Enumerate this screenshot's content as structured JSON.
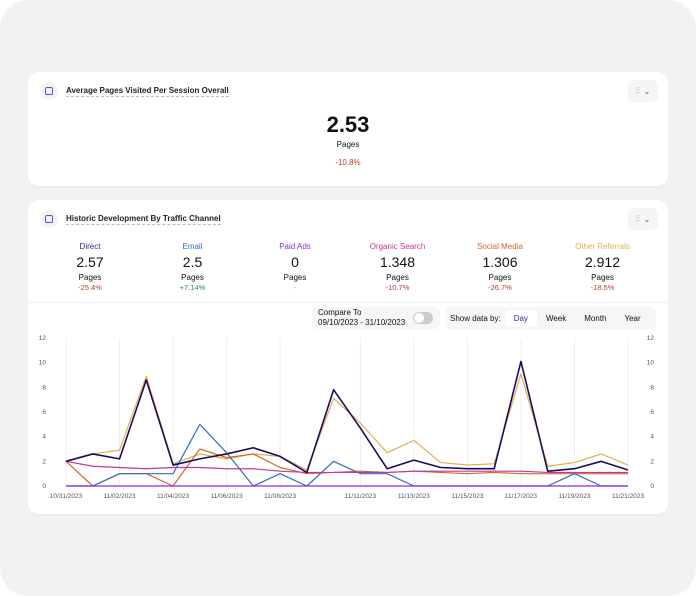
{
  "overall": {
    "title": "Average Pages Visited Per Session Overall",
    "value": "2.53",
    "unit": "Pages",
    "change": "-10.8%"
  },
  "historic": {
    "title": "Historic Development By Traffic Channel",
    "channels": [
      {
        "name": "Direct",
        "value": "2.57",
        "unit": "Pages",
        "change": "-25.4%",
        "color": "#3b1f8f",
        "trend": "neg"
      },
      {
        "name": "Email",
        "value": "2.5",
        "unit": "Pages",
        "change": "+7.14%",
        "color": "#2f6fbf",
        "trend": "pos"
      },
      {
        "name": "Paid Ads",
        "value": "0",
        "unit": "Pages",
        "change": "-",
        "color": "#8a2be2",
        "trend": "none"
      },
      {
        "name": "Organic Search",
        "value": "1.348",
        "unit": "Pages",
        "change": "-10.7%",
        "color": "#c0399c",
        "trend": "neg"
      },
      {
        "name": "Social Media",
        "value": "1.306",
        "unit": "Pages",
        "change": "-26.7%",
        "color": "#d3692b",
        "trend": "neg"
      },
      {
        "name": "Other Referrals",
        "value": "2.912",
        "unit": "Pages",
        "change": "-18.5%",
        "color": "#e0b050",
        "trend": "neg"
      }
    ],
    "compare": {
      "label": "Compare To",
      "range": "09/10/2023 - 31/10/2023",
      "enabled": false
    },
    "show_by": {
      "label": "Show data by:",
      "options": [
        "Day",
        "Week",
        "Month",
        "Year"
      ],
      "selected": "Day"
    }
  },
  "chart_data": {
    "type": "line",
    "x": [
      "10/31/2023",
      "11/01/2023",
      "11/02/2023",
      "11/03/2023",
      "11/04/2023",
      "11/05/2023",
      "11/06/2023",
      "11/07/2023",
      "11/08/2023",
      "11/09/2023",
      "11/10/2023",
      "11/11/2023",
      "11/12/2023",
      "11/13/2023",
      "11/14/2023",
      "11/15/2023",
      "11/16/2023",
      "11/17/2023",
      "11/18/2023",
      "11/19/2023",
      "11/20/2023",
      "11/21/2023"
    ],
    "xtick_labels": [
      "10/31/2023",
      "11/02/2023",
      "11/04/2023",
      "11/06/2023",
      "11/08/2023",
      "11/11/2023",
      "11/13/2023",
      "11/15/2023",
      "11/17/2023",
      "11/19/2023",
      "11/21/2023"
    ],
    "ylim": [
      0,
      12
    ],
    "yticks": [
      0,
      2,
      4,
      6,
      8,
      10,
      12
    ],
    "grid": true,
    "series": [
      {
        "name": "Other Referrals",
        "color": "#e0b050",
        "values": [
          2,
          2.6,
          2.9,
          8.9,
          1.8,
          2.6,
          2.2,
          2.6,
          2.4,
          1.3,
          7.1,
          5.1,
          2.7,
          3.7,
          1.9,
          1.7,
          1.8,
          9.1,
          1.6,
          1.9,
          2.6,
          1.7
        ]
      },
      {
        "name": "Social Media",
        "color": "#d3692b",
        "values": [
          2,
          0,
          1,
          1,
          0,
          3,
          2.3,
          2.6,
          1.5,
          1,
          1.1,
          1.2,
          1.1,
          1.2,
          1.1,
          1,
          1.1,
          1,
          1,
          1,
          1,
          1
        ]
      },
      {
        "name": "Email",
        "color": "#2f6fbf",
        "values": [
          0,
          0,
          1,
          1,
          1,
          5,
          2.7,
          0,
          1,
          0,
          2,
          1,
          1,
          0,
          0,
          0,
          0,
          0,
          0,
          1,
          0,
          0
        ]
      },
      {
        "name": "Paid Ads",
        "color": "#8a2be2",
        "values": [
          0,
          0,
          0,
          0,
          0,
          0,
          0,
          0,
          0,
          0,
          0,
          0,
          0,
          0,
          0,
          0,
          0,
          0,
          0,
          0,
          0,
          0
        ]
      },
      {
        "name": "Organic Search",
        "color": "#c0399c",
        "values": [
          2,
          1.6,
          1.5,
          1.4,
          1.5,
          1.5,
          1.4,
          1.4,
          1.2,
          1.1,
          1.1,
          1.1,
          1.1,
          1.2,
          1.2,
          1.2,
          1.2,
          1.2,
          1.1,
          1.1,
          1.1,
          1.1
        ]
      },
      {
        "name": "Direct",
        "color": "#1e0a5c",
        "values": [
          2,
          2.6,
          2.2,
          8.6,
          1.7,
          2.2,
          2.6,
          3.1,
          2.4,
          1.1,
          7.8,
          4.7,
          1.4,
          2.1,
          1.5,
          1.4,
          1.4,
          10.1,
          1.2,
          1.4,
          2.0,
          1.3
        ]
      }
    ]
  }
}
